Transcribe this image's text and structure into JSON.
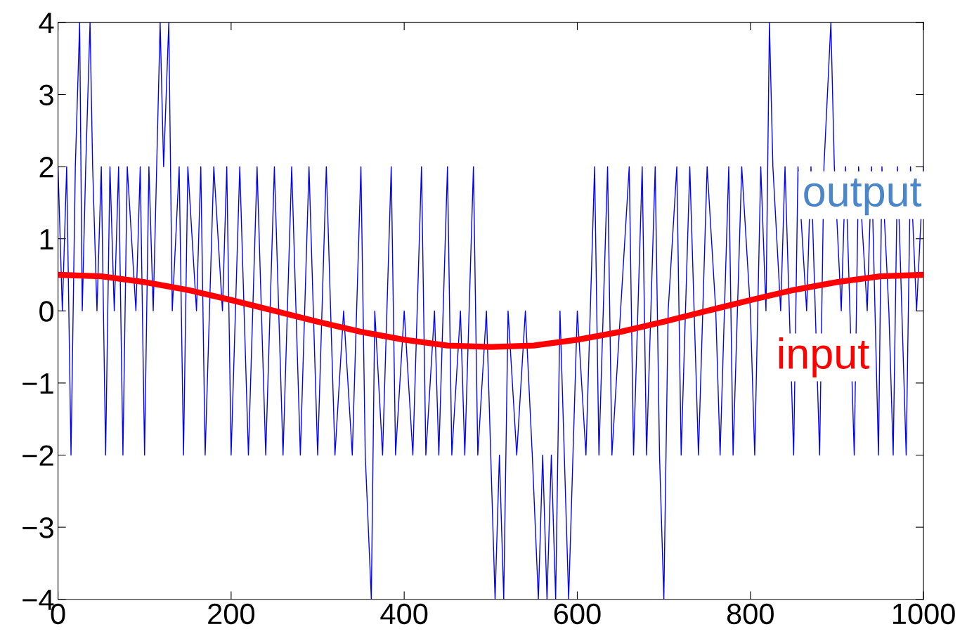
{
  "chart_data": {
    "type": "line",
    "xlim": [
      0,
      1000
    ],
    "ylim": [
      -4,
      4
    ],
    "xticks": [
      0,
      200,
      400,
      600,
      800,
      1000
    ],
    "yticks": [
      {
        "value": -4,
        "label": "−4"
      },
      {
        "value": -3,
        "label": "−3"
      },
      {
        "value": -2,
        "label": "−2"
      },
      {
        "value": -1,
        "label": "−1"
      },
      0,
      1,
      2,
      3,
      4
    ],
    "grid": false,
    "legend": false,
    "marker": "none",
    "line_style": "solid",
    "series": [
      {
        "name": "output",
        "color": "#0000ff",
        "x": [
          0,
          5,
          10,
          15,
          20,
          25,
          28,
          32,
          37,
          40,
          45,
          50,
          55,
          60,
          65,
          70,
          75,
          80,
          90,
          95,
          100,
          105,
          110,
          118,
          122,
          128,
          132,
          140,
          145,
          150,
          160,
          165,
          170,
          180,
          190,
          195,
          200,
          210,
          215,
          220,
          230,
          240,
          250,
          260,
          270,
          280,
          290,
          295,
          300,
          310,
          320,
          330,
          340,
          350,
          355,
          362,
          366,
          375,
          385,
          390,
          400,
          410,
          420,
          425,
          435,
          440,
          450,
          455,
          465,
          470,
          480,
          485,
          495,
          505,
          510,
          515,
          520,
          530,
          540,
          548,
          555,
          560,
          565,
          570,
          575,
          580,
          590,
          595,
          600,
          610,
          620,
          625,
          635,
          640,
          650,
          660,
          665,
          675,
          680,
          690,
          695,
          700,
          705,
          715,
          720,
          730,
          740,
          750,
          760,
          765,
          775,
          780,
          790,
          800,
          805,
          812,
          818,
          822,
          826,
          835,
          840,
          850,
          855,
          865,
          870,
          880,
          885,
          893,
          897,
          905,
          910,
          920,
          925,
          935,
          940,
          948,
          952,
          960,
          965,
          970,
          980,
          985,
          992,
          1000
        ],
        "values": [
          2,
          0,
          2,
          -2,
          2,
          4,
          0,
          2,
          4,
          2,
          0,
          2,
          -2,
          2,
          0,
          2,
          -2,
          2,
          0,
          2,
          -2,
          2,
          0,
          4,
          2,
          4,
          0,
          2,
          -2,
          2,
          0,
          2,
          -2,
          2,
          0,
          2,
          -2,
          2,
          0,
          -2,
          2,
          -2,
          2,
          -2,
          2,
          -2,
          2,
          0,
          -2,
          2,
          -2,
          0,
          -2,
          2,
          -2,
          -4,
          0,
          -2,
          2,
          -2,
          0,
          -2,
          2,
          -2,
          0,
          -2,
          2,
          -2,
          0,
          -2,
          2,
          -2,
          0,
          -4,
          -2,
          -4,
          0,
          -2,
          0,
          -2,
          -4,
          -2,
          -4,
          -2,
          -4,
          0,
          -4,
          -2,
          0,
          -2,
          2,
          -2,
          2,
          -2,
          0,
          2,
          -2,
          2,
          -2,
          2,
          -2,
          -4,
          0,
          2,
          -2,
          2,
          -2,
          2,
          0,
          -2,
          2,
          -2,
          2,
          0,
          -2,
          2,
          0,
          4,
          2,
          0,
          2,
          -2,
          2,
          0,
          2,
          -2,
          2,
          4,
          2,
          0,
          2,
          -2,
          2,
          0,
          2,
          -2,
          2,
          0,
          -2,
          2,
          -2,
          2,
          0,
          2
        ]
      },
      {
        "name": "input",
        "color": "#ff0000",
        "x": [
          0,
          50,
          100,
          150,
          200,
          250,
          300,
          350,
          400,
          450,
          500,
          550,
          600,
          650,
          700,
          750,
          800,
          850,
          900,
          950,
          1000
        ],
        "values": [
          0.5,
          0.48,
          0.4,
          0.29,
          0.15,
          0,
          -0.15,
          -0.29,
          -0.4,
          -0.48,
          -0.5,
          -0.48,
          -0.4,
          -0.29,
          -0.15,
          0,
          0.15,
          0.29,
          0.4,
          0.48,
          0.5
        ]
      }
    ]
  }
}
